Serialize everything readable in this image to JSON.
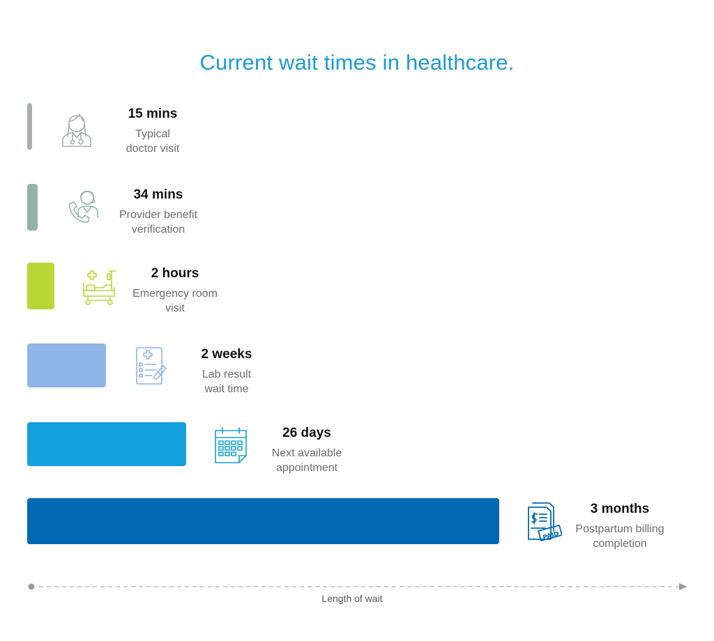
{
  "chart_data": {
    "type": "bar",
    "orientation": "horizontal",
    "title": "Current wait times in healthcare.",
    "xlabel": "Length of wait",
    "ylabel": "",
    "grid": false,
    "legend": "none",
    "items": [
      {
        "value_label": "15 mins",
        "description": "Typical\ndoctor visit",
        "relative_length": 0.011,
        "color": "#a9adb2",
        "icon": "doctor-icon"
      },
      {
        "value_label": "34 mins",
        "description": "Provider benefit\nverification",
        "relative_length": 0.022,
        "color": "#94b3a8",
        "icon": "phone-agent-icon"
      },
      {
        "value_label": "2 hours",
        "description": "Emergency room\nvisit",
        "relative_length": 0.057,
        "color": "#b9d637",
        "icon": "hospital-bed-icon"
      },
      {
        "value_label": "2 weeks",
        "description": "Lab result\nwait time",
        "relative_length": 0.167,
        "color": "#8fb4e6",
        "icon": "lab-report-icon"
      },
      {
        "value_label": "26 days",
        "description": "Next available\nappointment",
        "relative_length": 0.337,
        "color": "#14a0dc",
        "icon": "calendar-icon"
      },
      {
        "value_label": "3 months",
        "description": "Postpartum billing\ncompletion",
        "relative_length": 1.0,
        "color": "#0168b4",
        "icon": "paid-bill-icon"
      }
    ]
  }
}
